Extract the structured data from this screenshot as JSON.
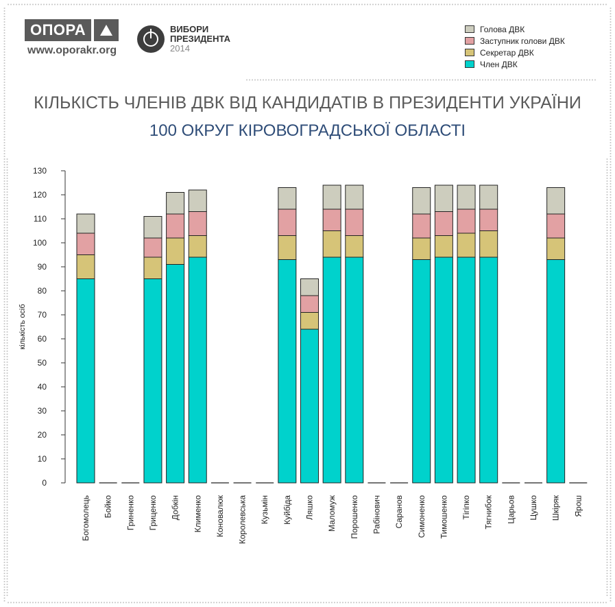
{
  "header": {
    "logo_text": "ОПОРА",
    "site_url": "www.oporakr.org",
    "campaign_line1": "ВИБОРИ",
    "campaign_line2": "ПРЕЗИДЕНТА",
    "campaign_year": "2014"
  },
  "colors": {
    "holova": "#cdcdbe",
    "zastupnyk": "#e2a1a3",
    "sekretar": "#d6c478",
    "chlen": "#00d2cc",
    "title": "#5a5a5a",
    "subtitle": "#2f4d78"
  },
  "chart_data": {
    "type": "bar",
    "stacked": true,
    "title": "КІЛЬКІСТЬ ЧЛЕНІВ ДВК ВІД КАНДИДАТІВ В ПРЕЗИДЕНТИ УКРАЇНИ",
    "subtitle": "100 ОКРУГ КІРОВОГРАДСЬКОЇ ОБЛАСТІ",
    "xlabel": "",
    "ylabel": "кількість осіб",
    "ylim": [
      0,
      130
    ],
    "yticks": [
      0,
      10,
      20,
      30,
      40,
      50,
      60,
      70,
      80,
      90,
      100,
      110,
      120,
      130
    ],
    "legend_position": "top-right",
    "categories": [
      "Богомолець",
      "Бойко",
      "Гриненко",
      "Гриценко",
      "Добкін",
      "Клименко",
      "Коновалюк",
      "Королевська",
      "Кузьмін",
      "Куйбіда",
      "Ляшко",
      "Маломуж",
      "Порошенко",
      "Рабінович",
      "Саранов",
      "Симоненко",
      "Тимошенко",
      "Тігіпко",
      "Тягнибок",
      "Царьов",
      "Цушко",
      "Шкіряк",
      "Ярош"
    ],
    "series": [
      {
        "name": "Член ДВК",
        "color_key": "chlen",
        "values": [
          85,
          0,
          0,
          85,
          91,
          94,
          0,
          0,
          0,
          93,
          64,
          94,
          94,
          0,
          0,
          93,
          94,
          94,
          94,
          0,
          0,
          93,
          0
        ]
      },
      {
        "name": "Секретар ДВК",
        "color_key": "sekretar",
        "values": [
          10,
          0,
          0,
          9,
          11,
          9,
          0,
          0,
          0,
          10,
          7,
          11,
          9,
          0,
          0,
          9,
          9,
          10,
          11,
          0,
          0,
          9,
          0
        ]
      },
      {
        "name": "Заступник голови ДВК",
        "color_key": "zastupnyk",
        "values": [
          9,
          0,
          0,
          8,
          10,
          10,
          0,
          0,
          0,
          11,
          7,
          9,
          11,
          0,
          0,
          10,
          10,
          10,
          9,
          0,
          0,
          10,
          0
        ]
      },
      {
        "name": "Голова ДВК",
        "color_key": "holova",
        "values": [
          8,
          0,
          0,
          9,
          9,
          9,
          0,
          0,
          0,
          9,
          7,
          10,
          10,
          0,
          0,
          11,
          11,
          10,
          10,
          0,
          0,
          11,
          0
        ]
      }
    ],
    "legend": [
      "Голова ДВК",
      "Заступник голови ДВК",
      "Секретар ДВК",
      "Член ДВК"
    ]
  }
}
